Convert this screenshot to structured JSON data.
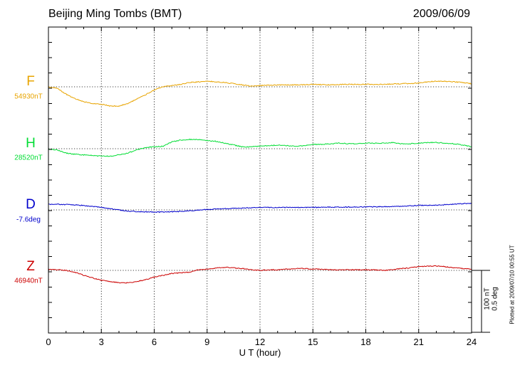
{
  "header": {
    "title": "Beijing Ming Tombs (BMT)",
    "date": "2009/06/09"
  },
  "footer": {
    "plotted_note": "Plotted at 2009/07/10 00:55 UT"
  },
  "scale_bar": {
    "label_nt": "100 nT",
    "label_deg": "0.5 deg"
  },
  "colors": {
    "F": "#e8a400",
    "H": "#00dd33",
    "D": "#0000cc",
    "Z": "#cc0000",
    "grid": "#000000",
    "axis": "#000000"
  },
  "chart_data": {
    "type": "line",
    "title": "Beijing Ming Tombs (BMT)",
    "date": "2009/06/09",
    "xlabel": "U T (hour)",
    "xlim": [
      0,
      24
    ],
    "xticks": [
      0,
      3,
      6,
      9,
      12,
      15,
      18,
      21,
      24
    ],
    "grid": true,
    "series": [
      {
        "name": "F",
        "baseline_label": "54930nT",
        "baseline": 54930,
        "unit": "nT",
        "points": [
          [
            0,
            54930
          ],
          [
            0.5,
            54928
          ],
          [
            1,
            54918
          ],
          [
            1.5,
            54911
          ],
          [
            2,
            54906
          ],
          [
            2.5,
            54903
          ],
          [
            3,
            54902
          ],
          [
            3.5,
            54899
          ],
          [
            4,
            54899
          ],
          [
            4.5,
            54903
          ],
          [
            5,
            54910
          ],
          [
            5.5,
            54917
          ],
          [
            6,
            54925
          ],
          [
            6.5,
            54930
          ],
          [
            7,
            54932
          ],
          [
            7.5,
            54934
          ],
          [
            8,
            54937
          ],
          [
            8.5,
            54938
          ],
          [
            9,
            54939
          ],
          [
            9.5,
            54938
          ],
          [
            10,
            54937
          ],
          [
            10.5,
            54935
          ],
          [
            11,
            54933
          ],
          [
            11.5,
            54931
          ],
          [
            12,
            54932
          ],
          [
            13,
            54933
          ],
          [
            14,
            54933
          ],
          [
            15,
            54934
          ],
          [
            16,
            54933
          ],
          [
            17,
            54934
          ],
          [
            18,
            54934
          ],
          [
            19,
            54934
          ],
          [
            20,
            54935
          ],
          [
            21,
            54936
          ],
          [
            21.5,
            54938
          ],
          [
            22,
            54939
          ],
          [
            22.5,
            54939
          ],
          [
            23,
            54938
          ],
          [
            23.5,
            54937
          ],
          [
            24,
            54935
          ]
        ]
      },
      {
        "name": "H",
        "baseline_label": "28520nT",
        "baseline": 28520,
        "unit": "nT",
        "points": [
          [
            0,
            28519
          ],
          [
            0.5,
            28518
          ],
          [
            1,
            28513
          ],
          [
            1.5,
            28511
          ],
          [
            2,
            28510
          ],
          [
            2.5,
            28509
          ],
          [
            3,
            28508
          ],
          [
            3.5,
            28508
          ],
          [
            4,
            28510
          ],
          [
            4.5,
            28513
          ],
          [
            5,
            28518
          ],
          [
            5.5,
            28522
          ],
          [
            6,
            28523
          ],
          [
            6.5,
            28524
          ],
          [
            7,
            28531
          ],
          [
            7.5,
            28534
          ],
          [
            8,
            28535
          ],
          [
            8.5,
            28535
          ],
          [
            9,
            28533
          ],
          [
            9.5,
            28532
          ],
          [
            10,
            28529
          ],
          [
            10.5,
            28526
          ],
          [
            11,
            28523
          ],
          [
            11.5,
            28523
          ],
          [
            12,
            28524
          ],
          [
            12.5,
            28525
          ],
          [
            13,
            28526
          ],
          [
            13.5,
            28525
          ],
          [
            14,
            28524
          ],
          [
            14.5,
            28525
          ],
          [
            15,
            28527
          ],
          [
            15.5,
            28527
          ],
          [
            16,
            28528
          ],
          [
            16.5,
            28529
          ],
          [
            17,
            28528
          ],
          [
            17.5,
            28528
          ],
          [
            18,
            28529
          ],
          [
            18.5,
            28529
          ],
          [
            19,
            28529
          ],
          [
            19.5,
            28530
          ],
          [
            20,
            28528
          ],
          [
            20.5,
            28528
          ],
          [
            21,
            28529
          ],
          [
            21.5,
            28530
          ],
          [
            22,
            28530
          ],
          [
            22.5,
            28529
          ],
          [
            23,
            28528
          ],
          [
            23.5,
            28526
          ],
          [
            24,
            28523
          ]
        ]
      },
      {
        "name": "D",
        "baseline_label": "-7.6deg",
        "baseline": -7.6,
        "unit": "deg",
        "points": [
          [
            0,
            -7.555
          ],
          [
            0.5,
            -7.555
          ],
          [
            1,
            -7.557
          ],
          [
            1.5,
            -7.559
          ],
          [
            2,
            -7.565
          ],
          [
            2.5,
            -7.572
          ],
          [
            3,
            -7.58
          ],
          [
            3.5,
            -7.59
          ],
          [
            4,
            -7.6
          ],
          [
            4.5,
            -7.61
          ],
          [
            5,
            -7.613
          ],
          [
            5.5,
            -7.616
          ],
          [
            6,
            -7.618
          ],
          [
            6.5,
            -7.617
          ],
          [
            7,
            -7.615
          ],
          [
            7.5,
            -7.612
          ],
          [
            8,
            -7.607
          ],
          [
            8.5,
            -7.602
          ],
          [
            9,
            -7.597
          ],
          [
            9.5,
            -7.593
          ],
          [
            10,
            -7.59
          ],
          [
            10.5,
            -7.588
          ],
          [
            11,
            -7.586
          ],
          [
            11.5,
            -7.583
          ],
          [
            12,
            -7.58
          ],
          [
            13,
            -7.58
          ],
          [
            14,
            -7.58
          ],
          [
            15,
            -7.58
          ],
          [
            16,
            -7.578
          ],
          [
            17,
            -7.577
          ],
          [
            18,
            -7.576
          ],
          [
            19,
            -7.574
          ],
          [
            20,
            -7.572
          ],
          [
            20.5,
            -7.568
          ],
          [
            21,
            -7.564
          ],
          [
            21.5,
            -7.563
          ],
          [
            22,
            -7.562
          ],
          [
            22.5,
            -7.558
          ],
          [
            23,
            -7.553
          ],
          [
            23.5,
            -7.549
          ],
          [
            24,
            -7.548
          ]
        ]
      },
      {
        "name": "Z",
        "baseline_label": "46940nT",
        "baseline": 46940,
        "unit": "nT",
        "points": [
          [
            0,
            46942
          ],
          [
            0.5,
            46941
          ],
          [
            1,
            46940
          ],
          [
            1.5,
            46937
          ],
          [
            2,
            46932
          ],
          [
            2.5,
            46928
          ],
          [
            3,
            46924
          ],
          [
            3.5,
            46922
          ],
          [
            4,
            46920
          ],
          [
            4.5,
            46920
          ],
          [
            5,
            46922
          ],
          [
            5.5,
            46925
          ],
          [
            6,
            46929
          ],
          [
            6.5,
            46932
          ],
          [
            7,
            46935
          ],
          [
            7.5,
            46936
          ],
          [
            8,
            46937
          ],
          [
            8.5,
            46941
          ],
          [
            9,
            46942
          ],
          [
            9.5,
            46944
          ],
          [
            10,
            46945
          ],
          [
            10.5,
            46944
          ],
          [
            11,
            46943
          ],
          [
            11.5,
            46941
          ],
          [
            12,
            46940
          ],
          [
            12.5,
            46941
          ],
          [
            13,
            46941
          ],
          [
            13.5,
            46942
          ],
          [
            14,
            46943
          ],
          [
            14.5,
            46943
          ],
          [
            15,
            46942
          ],
          [
            15.5,
            46942
          ],
          [
            16,
            46941
          ],
          [
            16.5,
            46941
          ],
          [
            17,
            46941
          ],
          [
            17.5,
            46941
          ],
          [
            18,
            46941
          ],
          [
            18.5,
            46941
          ],
          [
            19,
            46940
          ],
          [
            19.5,
            46941
          ],
          [
            20,
            46943
          ],
          [
            20.5,
            46944
          ],
          [
            21,
            46946
          ],
          [
            21.5,
            46947
          ],
          [
            22,
            46947
          ],
          [
            22.5,
            46946
          ],
          [
            23,
            46944
          ],
          [
            23.5,
            46943
          ],
          [
            24,
            46942
          ]
        ]
      }
    ]
  }
}
